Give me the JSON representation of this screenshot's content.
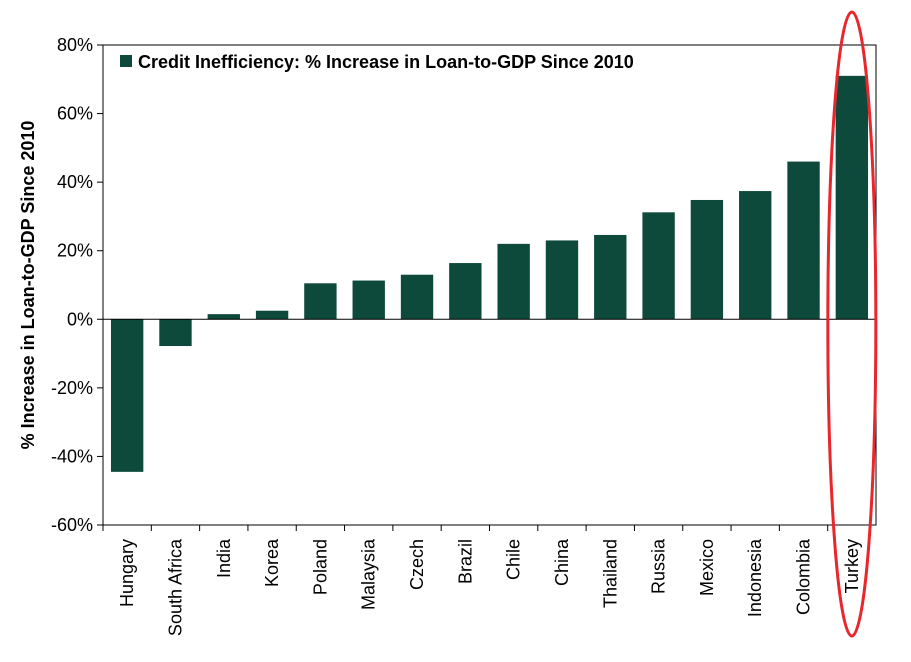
{
  "chart_data": {
    "type": "bar",
    "categories": [
      "Hungary",
      "South Africa",
      "India",
      "Korea",
      "Poland",
      "Malaysia",
      "Czech",
      "Brazil",
      "Chile",
      "China",
      "Thailand",
      "Russia",
      "Mexico",
      "Indonesia",
      "Colombia",
      "Turkey"
    ],
    "series": [
      {
        "name": "Credit Inefficiency: % Increase in Loan-to-GDP Since 2010",
        "values": [
          -44.5,
          -7.8,
          1.5,
          2.5,
          10.5,
          11.3,
          13.0,
          16.4,
          22.0,
          23.0,
          24.6,
          31.2,
          34.8,
          37.4,
          46.0,
          71.0
        ]
      }
    ],
    "ylabel": "% Increase in Loan-to-GDP Since 2010",
    "xlabel": "",
    "ylim": [
      -60,
      80
    ],
    "yticks": [
      80,
      60,
      40,
      20,
      0,
      -20,
      -40,
      -60
    ],
    "ytick_labels": [
      "80%",
      "60%",
      "40%",
      "20%",
      "0%",
      "-20%",
      "-40%",
      "-60%"
    ],
    "grid": false,
    "legend_position": "top-left",
    "highlighted_category": "Turkey",
    "colors": {
      "bar": "#0e4a3c",
      "highlight": "#e8262c"
    }
  }
}
